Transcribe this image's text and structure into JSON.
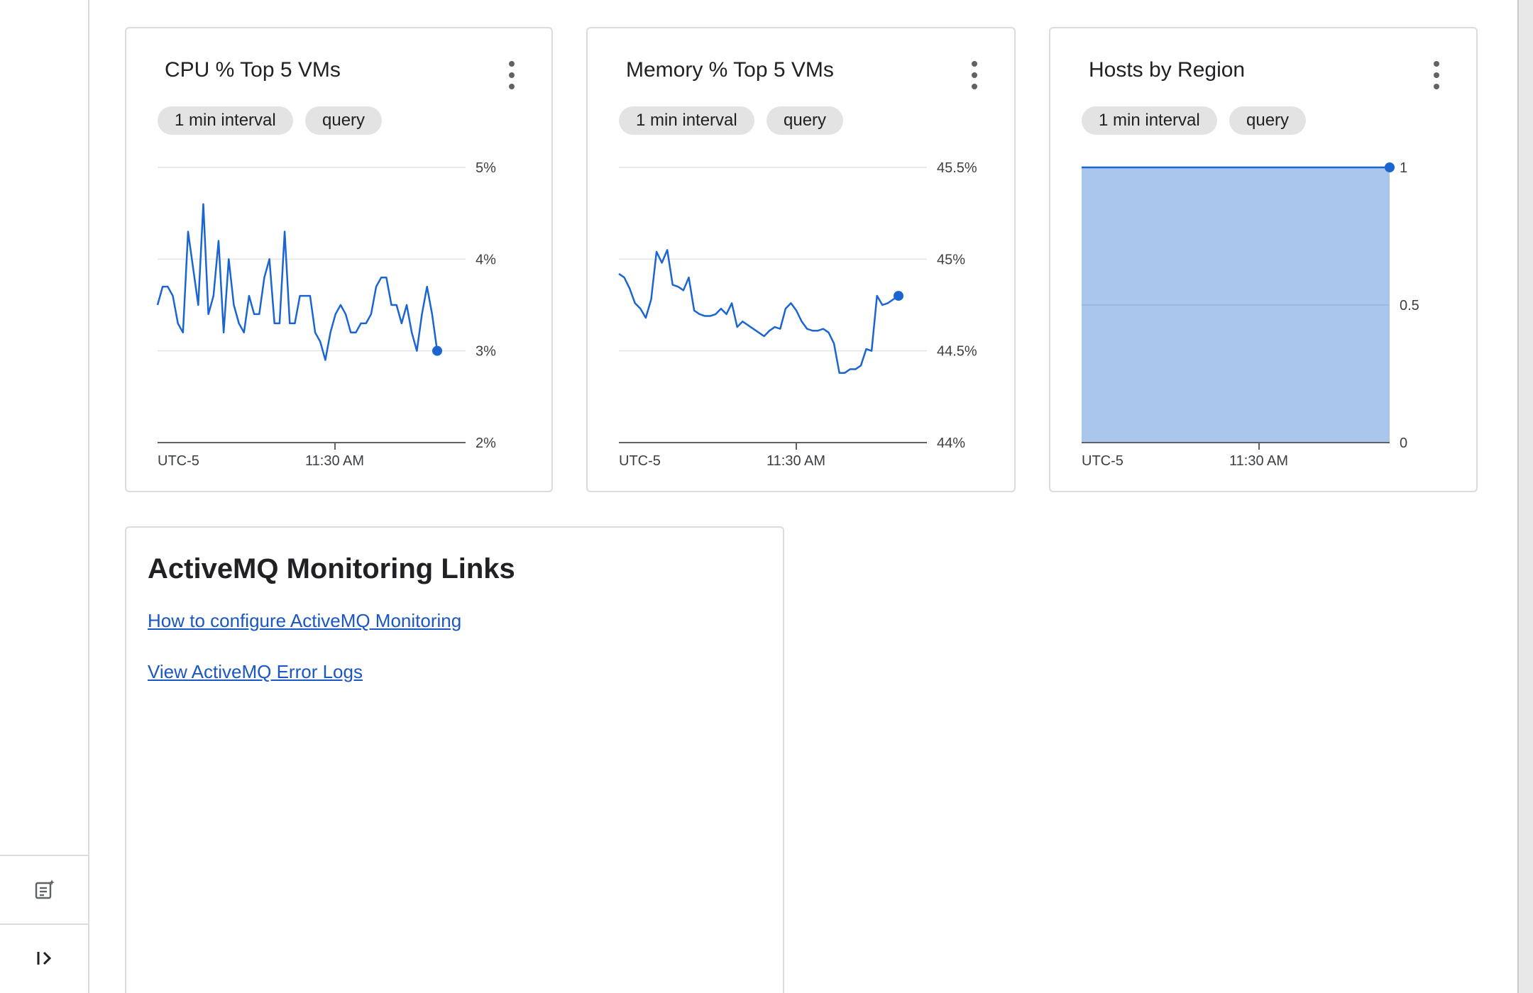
{
  "left_rail": {
    "notes_icon": "notes-sparkle-icon",
    "expand_icon": "expand-panel-icon"
  },
  "cards": [
    {
      "title": "CPU % Top 5 VMs",
      "chips": [
        "1 min interval",
        "query"
      ],
      "menu_icon": "more-vert-icon"
    },
    {
      "title": "Memory % Top 5 VMs",
      "chips": [
        "1 min interval",
        "query"
      ],
      "menu_icon": "more-vert-icon"
    },
    {
      "title": "Hosts by Region",
      "chips": [
        "1 min interval",
        "query"
      ],
      "menu_icon": "more-vert-icon"
    }
  ],
  "chart_data": [
    {
      "type": "line",
      "title": "CPU % Top 5 VMs",
      "color": "#1a65d1",
      "ylim": [
        2,
        5
      ],
      "y_ticks": [
        "5%",
        "4%",
        "3%",
        "2%"
      ],
      "x_ticks": [
        "UTC-5",
        "11:30 AM"
      ],
      "grid": true,
      "values": [
        3.5,
        3.7,
        3.7,
        3.6,
        3.3,
        3.2,
        4.3,
        3.9,
        3.5,
        4.6,
        3.4,
        3.6,
        4.2,
        3.2,
        4.0,
        3.5,
        3.3,
        3.2,
        3.6,
        3.4,
        3.4,
        3.8,
        4.0,
        3.3,
        3.3,
        4.3,
        3.3,
        3.3,
        3.6,
        3.6,
        3.6,
        3.2,
        3.1,
        2.9,
        3.2,
        3.4,
        3.5,
        3.4,
        3.2,
        3.2,
        3.3,
        3.3,
        3.4,
        3.7,
        3.8,
        3.8,
        3.5,
        3.5,
        3.3,
        3.5,
        3.2,
        3.0,
        3.4,
        3.7,
        3.4,
        3.0
      ]
    },
    {
      "type": "line",
      "title": "Memory % Top 5 VMs",
      "color": "#1a65d1",
      "ylim": [
        44,
        45.5
      ],
      "y_ticks": [
        "45.5%",
        "45%",
        "44.5%",
        "44%"
      ],
      "x_ticks": [
        "UTC-5",
        "11:30 AM"
      ],
      "grid": true,
      "values": [
        44.92,
        44.9,
        44.84,
        44.76,
        44.73,
        44.68,
        44.78,
        45.04,
        44.98,
        45.05,
        44.86,
        44.85,
        44.83,
        44.9,
        44.72,
        44.7,
        44.69,
        44.69,
        44.7,
        44.73,
        44.7,
        44.76,
        44.63,
        44.66,
        44.64,
        44.62,
        44.6,
        44.58,
        44.61,
        44.63,
        44.62,
        44.73,
        44.76,
        44.72,
        44.66,
        44.62,
        44.61,
        44.61,
        44.62,
        44.6,
        44.54,
        44.38,
        44.38,
        44.4,
        44.4,
        44.42,
        44.51,
        44.5,
        44.8,
        44.75,
        44.76,
        44.78,
        44.8
      ]
    },
    {
      "type": "area",
      "title": "Hosts by Region",
      "color": "#1a65d1",
      "fill": "#a9c6ec",
      "ylim": [
        0,
        1
      ],
      "y_ticks": [
        "1",
        "0.5",
        "0"
      ],
      "x_ticks": [
        "UTC-5",
        "11:30 AM"
      ],
      "grid": true,
      "values": [
        1,
        1
      ]
    }
  ],
  "links_card": {
    "title": "ActiveMQ Monitoring Links",
    "links": [
      "How to configure ActiveMQ Monitoring",
      "View ActiveMQ Error Logs"
    ]
  }
}
